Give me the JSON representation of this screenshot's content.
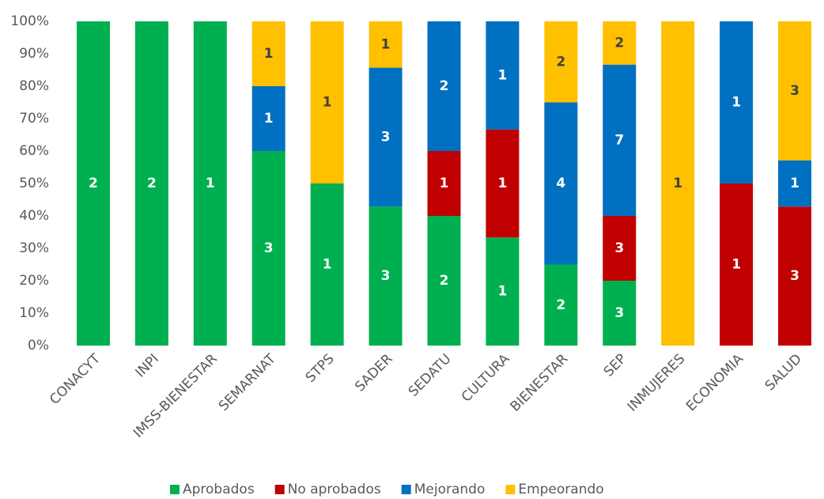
{
  "chart_data": {
    "type": "bar",
    "stacked": "percent",
    "categories": [
      "CONACYT",
      "INPI",
      "IMSS-BIENESTAR",
      "SEMARNAT",
      "STPS",
      "SADER",
      "SEDATU",
      "CULTURA",
      "BIENESTAR",
      "SEP",
      "INMUJERES",
      "ECONOMIA",
      "SALUD"
    ],
    "series": [
      {
        "name": "Aprobados",
        "color": "#00b050",
        "values": [
          2,
          2,
          1,
          3,
          1,
          3,
          2,
          1,
          2,
          3,
          0,
          0,
          0
        ]
      },
      {
        "name": "No aprobados",
        "color": "#c00000",
        "values": [
          0,
          0,
          0,
          0,
          0,
          0,
          1,
          1,
          0,
          3,
          0,
          1,
          3
        ]
      },
      {
        "name": "Mejorando",
        "color": "#0070c0",
        "values": [
          0,
          0,
          0,
          1,
          0,
          3,
          2,
          1,
          4,
          7,
          0,
          1,
          1
        ]
      },
      {
        "name": "Empeorando",
        "color": "#ffc000",
        "values": [
          0,
          0,
          0,
          1,
          1,
          1,
          0,
          0,
          2,
          2,
          1,
          0,
          3
        ]
      }
    ],
    "ylim": [
      0,
      100
    ],
    "yticks": [
      {
        "value": 0,
        "label": "0%"
      },
      {
        "value": 10,
        "label": "10%"
      },
      {
        "value": 20,
        "label": "20%"
      },
      {
        "value": 30,
        "label": "30%"
      },
      {
        "value": 40,
        "label": "40%"
      },
      {
        "value": 50,
        "label": "50%"
      },
      {
        "value": 60,
        "label": "60%"
      },
      {
        "value": 70,
        "label": "70%"
      },
      {
        "value": 80,
        "label": "80%"
      },
      {
        "value": 90,
        "label": "90%"
      },
      {
        "value": 100,
        "label": "100%"
      }
    ],
    "grid": false,
    "legend": "bottom"
  }
}
